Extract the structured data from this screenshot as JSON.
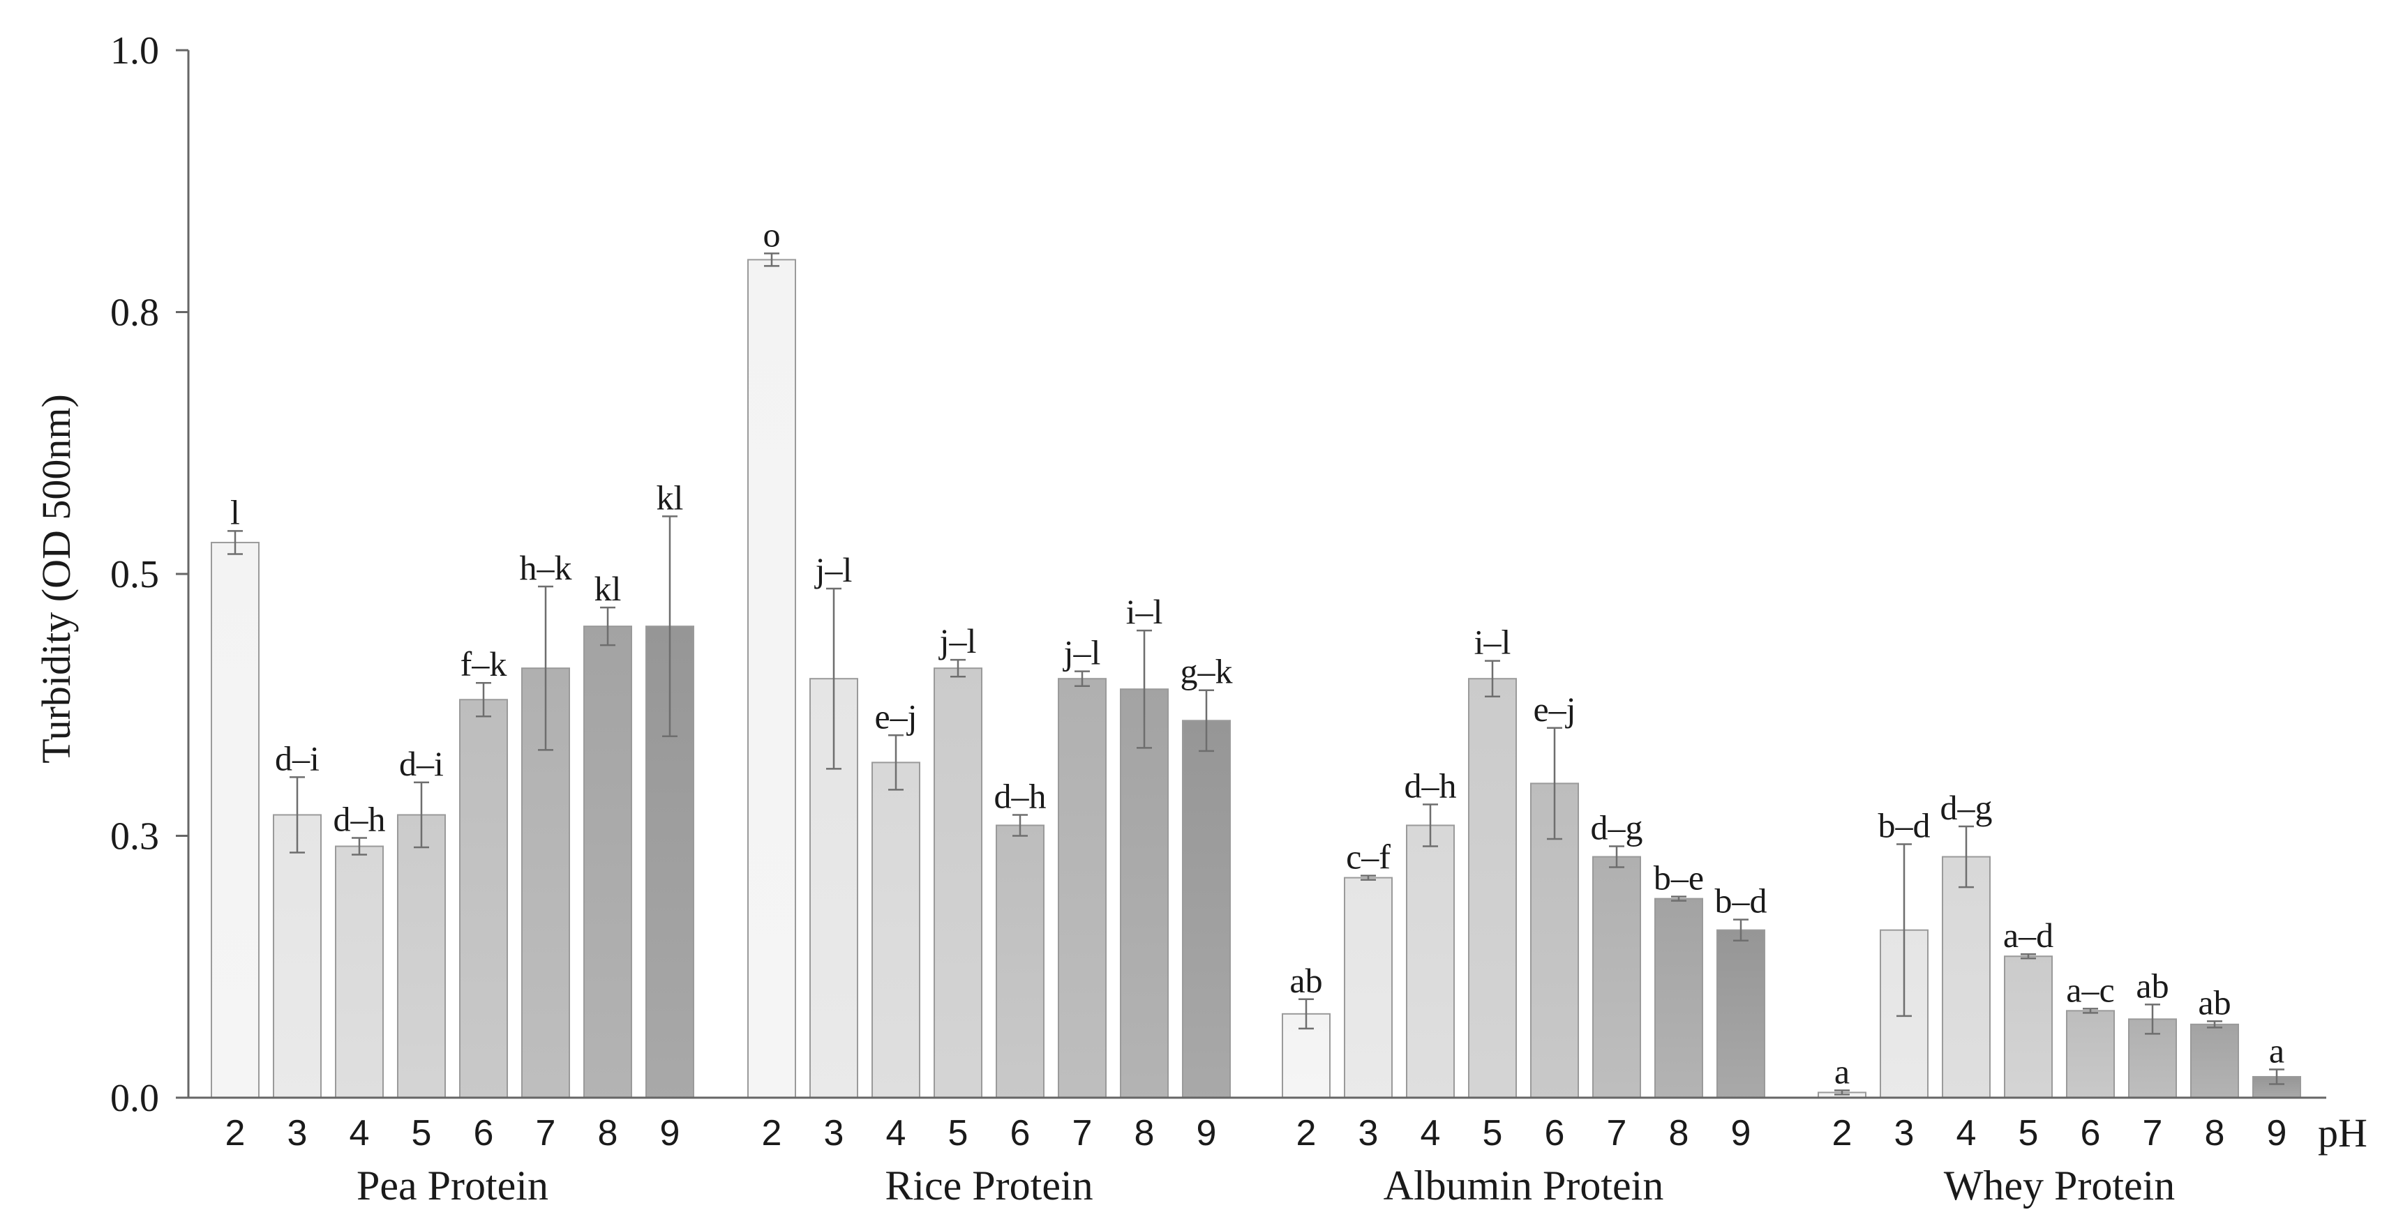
{
  "chart_data": {
    "type": "bar",
    "ylabel": "Turbidity (OD 500nm)",
    "xlabel": "pH",
    "ylim": [
      0,
      1.0
    ],
    "y_tick_labels": [
      "0.0",
      "0.3",
      "0.5",
      "0.8",
      "1.0"
    ],
    "grid": false,
    "legend": "none",
    "categories": [
      "2",
      "3",
      "4",
      "5",
      "6",
      "7",
      "8",
      "9"
    ],
    "series": [
      {
        "name": "Pea Protein",
        "values": [
          0.53,
          0.27,
          0.24,
          0.27,
          0.38,
          0.41,
          0.45,
          0.45
        ],
        "errors": [
          0.011,
          0.036,
          0.008,
          0.031,
          0.016,
          0.078,
          0.018,
          0.105
        ],
        "letters": [
          "l",
          "d–i",
          "d–h",
          "d–i",
          "f–k",
          "h–k",
          "kl",
          "kl"
        ]
      },
      {
        "name": "Rice Protein",
        "values": [
          0.8,
          0.4,
          0.32,
          0.41,
          0.26,
          0.4,
          0.39,
          0.36
        ],
        "errors": [
          0.006,
          0.086,
          0.026,
          0.008,
          0.01,
          0.007,
          0.056,
          0.029
        ],
        "letters": [
          "o",
          "j–l",
          "e–j",
          "j–l",
          "d–h",
          "j–l",
          "i–l",
          "g–k"
        ]
      },
      {
        "name": "Albumin Protein",
        "values": [
          0.08,
          0.21,
          0.26,
          0.4,
          0.3,
          0.23,
          0.19,
          0.16
        ],
        "errors": [
          0.014,
          0.002,
          0.02,
          0.017,
          0.053,
          0.01,
          0.002,
          0.01
        ],
        "letters": [
          "ab",
          "c–f",
          "d–h",
          "i–l",
          "e–j",
          "d–g",
          "b–e",
          "b–d"
        ]
      },
      {
        "name": "Whey Protein",
        "values": [
          0.005,
          0.16,
          0.23,
          0.135,
          0.083,
          0.075,
          0.07,
          0.02
        ],
        "errors": [
          0.002,
          0.082,
          0.029,
          0.002,
          0.002,
          0.014,
          0.003,
          0.007
        ],
        "letters": [
          "a",
          "b–d",
          "d–g",
          "a–d",
          "a–c",
          "ab",
          "ab",
          "a"
        ]
      }
    ],
    "bar_colors_by_ph": [
      "#f3f3f3",
      "#e5e5e5",
      "#d8d8d8",
      "#cbcbcb",
      "#bdbdbd",
      "#b0b0b0",
      "#a3a3a3",
      "#969696"
    ]
  }
}
